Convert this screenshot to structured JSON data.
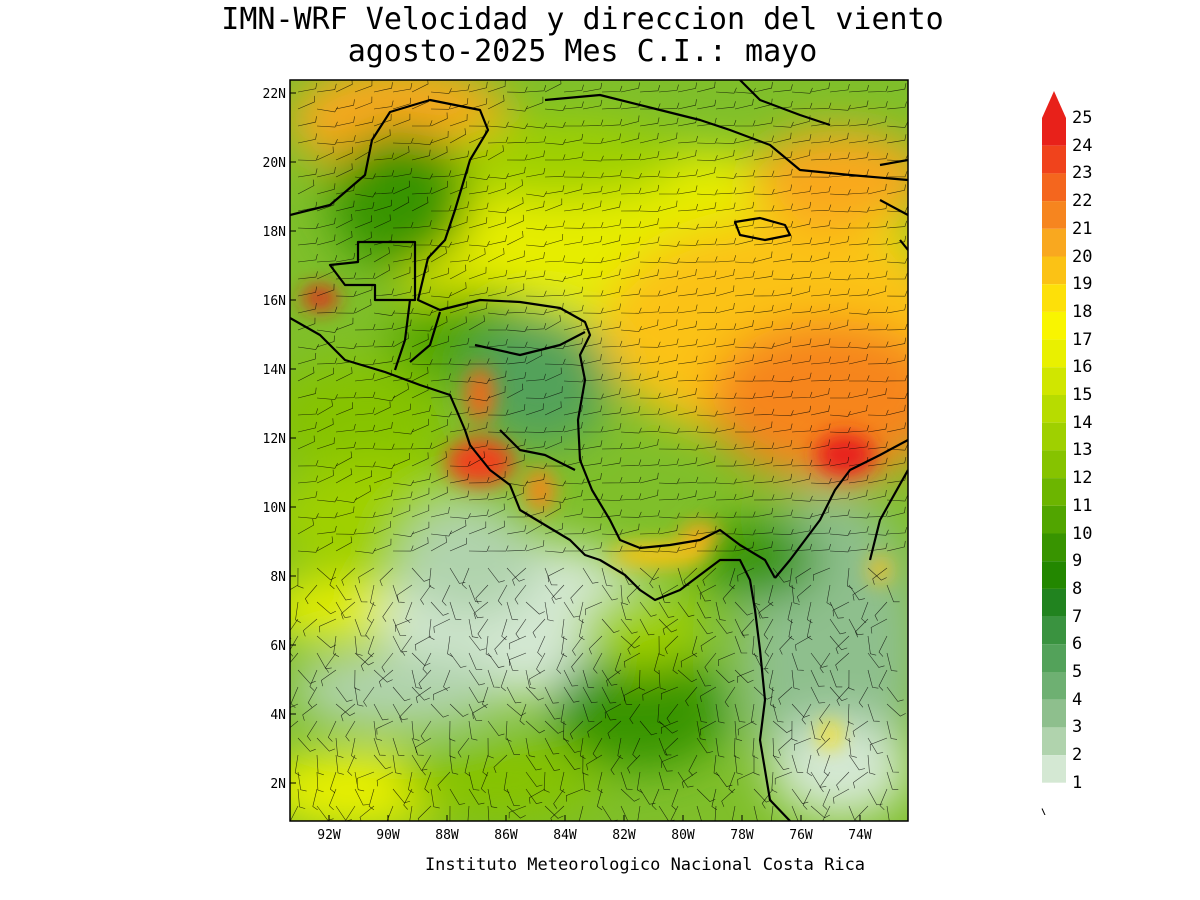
{
  "title": {
    "line1": "IMN-WRF Velocidad y direccion del viento",
    "line2": "agosto-2025 Mes C.I.: mayo"
  },
  "footer": "Instituto Meteorologico Nacional Costa Rica",
  "axes": {
    "lat_labels": [
      "22N",
      "20N",
      "18N",
      "16N",
      "14N",
      "12N",
      "10N",
      "8N",
      "6N",
      "4N",
      "2N"
    ],
    "lon_labels": [
      "92W",
      "90W",
      "88W",
      "86W",
      "84W",
      "82W",
      "80W",
      "78W",
      "76W",
      "74W"
    ]
  },
  "legend": {
    "labels": [
      "25",
      "24",
      "23",
      "22",
      "21",
      "20",
      "19",
      "18",
      "17",
      "16",
      "15",
      "14",
      "13",
      "12",
      "11",
      "10",
      "9",
      "8",
      "7",
      "6",
      "5",
      "4",
      "3",
      "2",
      "1"
    ],
    "colors": [
      "#e8211a",
      "#f0431c",
      "#f4661e",
      "#f6851f",
      "#f9a81f",
      "#fbc215",
      "#fde009",
      "#f9f500",
      "#e9f000",
      "#d0e600",
      "#b7dc00",
      "#9fd000",
      "#86c300",
      "#6cb500",
      "#51a500",
      "#389400",
      "#238700",
      "#21831f",
      "#3a9340",
      "#53a25a",
      "#6eb072",
      "#8ebf8d",
      "#b0d3ad",
      "#d4e8d3",
      "#ffffff"
    ]
  }
}
